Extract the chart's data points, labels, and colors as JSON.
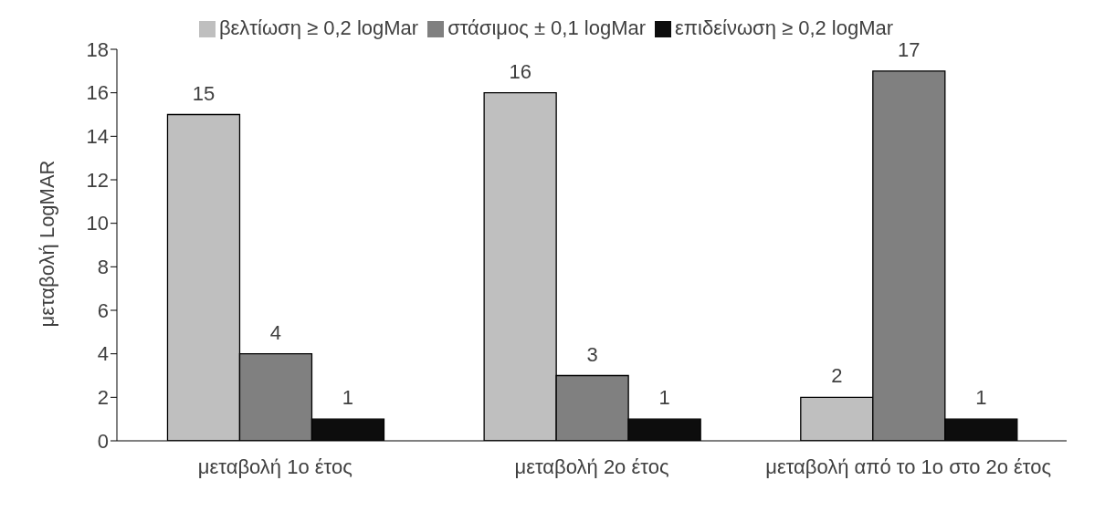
{
  "chart_data": {
    "type": "bar",
    "ylabel": "μεταβολή LogMAR",
    "categories": [
      "μεταβολή 1ο έτος",
      "μεταβολή 2ο έτος",
      "μεταβολή από το 1ο στο 2ο έτος"
    ],
    "series": [
      {
        "name": "βελτίωση ≥ 0,2 logMar",
        "color": "#bfbfbf",
        "values": [
          15,
          16,
          2
        ]
      },
      {
        "name": "στάσιμος ± 0,1 logMar",
        "color": "#808080",
        "values": [
          4,
          3,
          17
        ]
      },
      {
        "name": "επιδείνωση ≥ 0,2 logMar",
        "color": "#0d0d0d",
        "values": [
          1,
          1,
          1
        ]
      }
    ],
    "ylim": [
      0,
      18
    ],
    "yticks": [
      0,
      2,
      4,
      6,
      8,
      10,
      12,
      14,
      16,
      18
    ],
    "grid": false,
    "legend": "top",
    "data_labels": true
  }
}
